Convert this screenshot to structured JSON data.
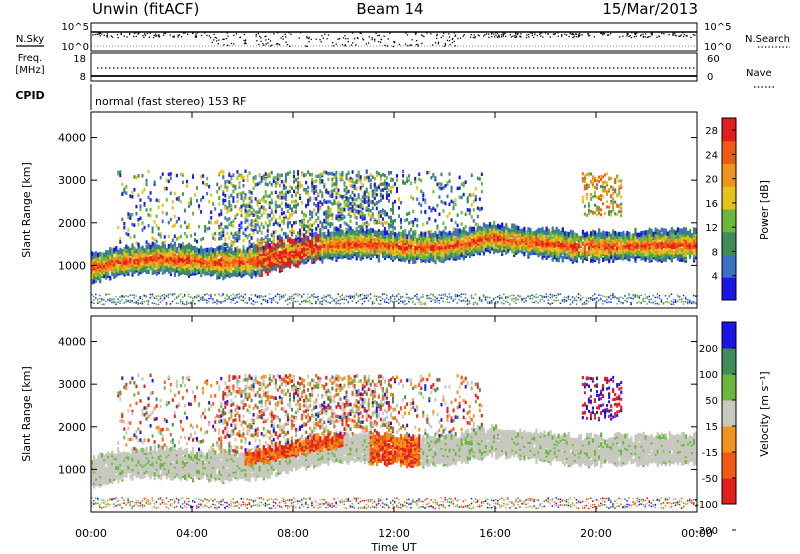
{
  "header": {
    "station": "Unwin (fitACF)",
    "beam": "Beam 14",
    "date": "15/Mar/2013"
  },
  "colors": {
    "ground_scatter": "#c8c8c0",
    "power_scale": [
      "#1a14e6",
      "#3b6fc2",
      "#3e8c5a",
      "#6ab83c",
      "#e6c21a",
      "#f0941e",
      "#f25a14",
      "#e01e1e"
    ],
    "velocity_scale": [
      "#e01e1e",
      "#f25a14",
      "#f0941e",
      "#c8c8c0",
      "#6ab83c",
      "#3e8c5a",
      "#1a14e6"
    ]
  },
  "chart_data": [
    {
      "type": "line",
      "panel": "noise",
      "left_label": "N.Sky",
      "right_label": "N.Search",
      "left_ticks": [
        "10^5",
        "10^0"
      ],
      "right_ticks": [
        "10^5",
        "10^0"
      ]
    },
    {
      "type": "line",
      "panel": "frequency",
      "left_label": "Freq.",
      "left_unit": "[MHz]",
      "left_ticks": [
        18,
        8
      ],
      "right_label": "Nave",
      "right_ticks": [
        60,
        0
      ],
      "cpid_label": "CPID",
      "cpid_text": "normal (fast stereo) 153 RF"
    },
    {
      "type": "heatmap",
      "panel": "power",
      "ylabel": "Slant Range [km]",
      "y_ticks": [
        1000,
        2000,
        3000,
        4000
      ],
      "ylim": [
        0,
        4600
      ],
      "colorbar_label": "Power [dB]",
      "colorbar_ticks": [
        4,
        8,
        12,
        16,
        20,
        24,
        28
      ],
      "clim": [
        0,
        30
      ]
    },
    {
      "type": "heatmap",
      "panel": "velocity",
      "ylabel": "Slant Range [km]",
      "y_ticks": [
        1000,
        2000,
        3000,
        4000
      ],
      "ylim": [
        0,
        4600
      ],
      "colorbar_label": "Velocity [m s⁻¹]",
      "colorbar_ticks": [
        -200,
        -100,
        -50,
        -15,
        15,
        50,
        100,
        200
      ]
    }
  ],
  "x_axis": {
    "label": "Time UT",
    "ticks": [
      "00:00",
      "04:00",
      "08:00",
      "12:00",
      "16:00",
      "20:00",
      "00:00"
    ]
  }
}
